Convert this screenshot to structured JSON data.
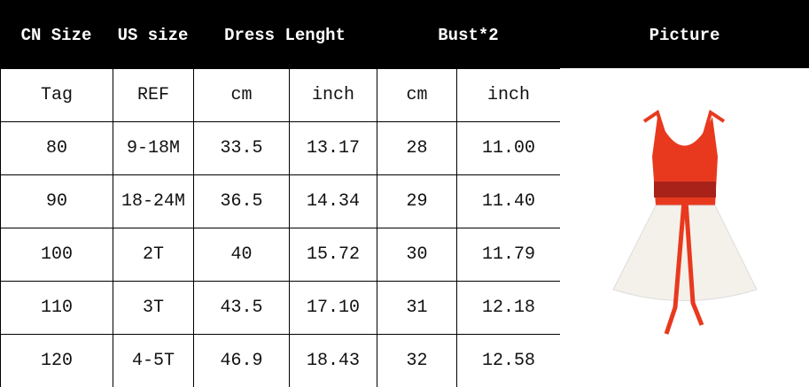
{
  "header": [
    "CN Size",
    "US size",
    "Dress Lenght",
    "Bust*2",
    "Picture"
  ],
  "subheader": [
    "Tag",
    "REF",
    "cm",
    "inch",
    "cm",
    "inch"
  ],
  "rows": [
    [
      "80",
      "9-18M",
      "33.5",
      "13.17",
      "28",
      "11.00"
    ],
    [
      "90",
      "18-24M",
      "36.5",
      "14.34",
      "29",
      "11.40"
    ],
    [
      "100",
      "2T",
      "40",
      "15.72",
      "30",
      "11.79"
    ],
    [
      "110",
      "3T",
      "43.5",
      "17.10",
      "31",
      "12.18"
    ],
    [
      "120",
      "4-5T",
      "46.9",
      "18.43",
      "32",
      "12.58"
    ]
  ],
  "colors": {
    "header_bg": "#000000",
    "dress_red": "#e8391f",
    "dress_white": "#f4f1ea"
  }
}
